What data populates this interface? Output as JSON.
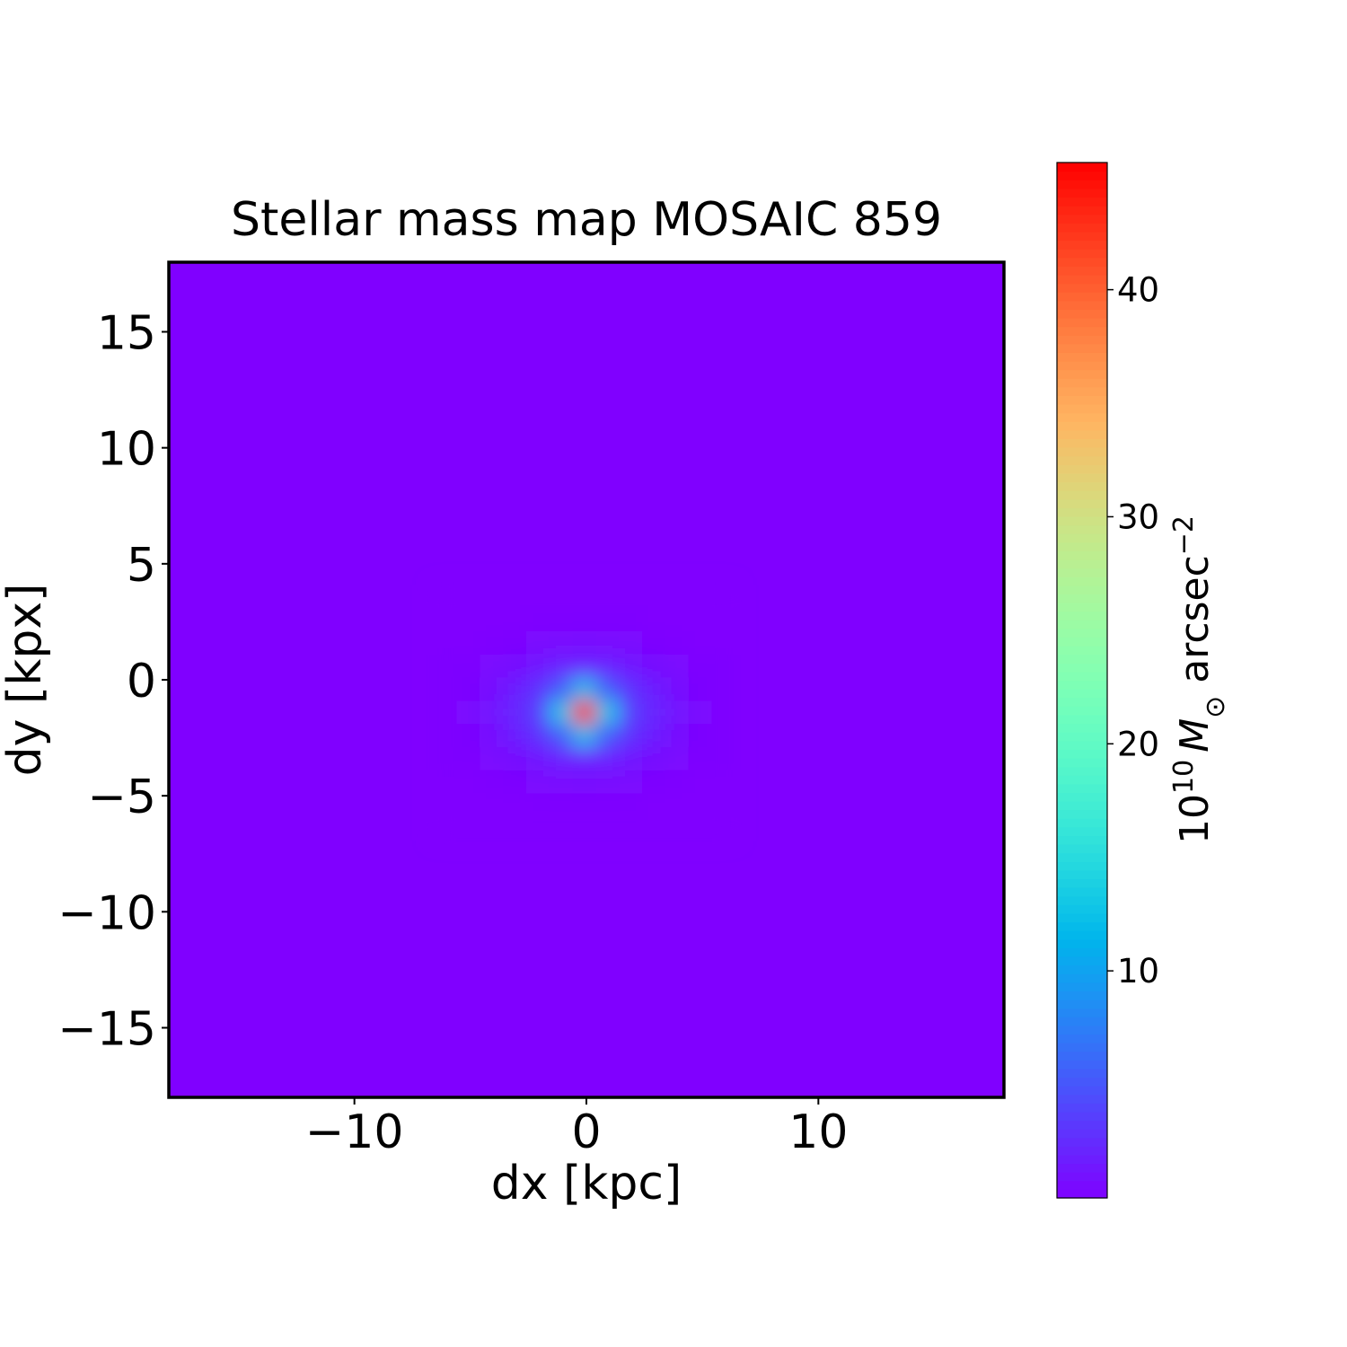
{
  "chart_data": {
    "type": "heatmap",
    "title": "Stellar mass map MOSAIC 859",
    "x_label": "dx [kpc]",
    "y_label": "dy [kpx]",
    "colorbar_label": [
      "10",
      "10",
      "M",
      "⊙",
      " arcsec",
      "−2"
    ],
    "colormap": "rainbow",
    "xlim": [
      -18,
      18
    ],
    "ylim": [
      -18,
      18
    ],
    "xticks": [
      {
        "value": -10,
        "label": "−10"
      },
      0,
      10
    ],
    "yticks": [
      {
        "value": -15,
        "label": "−15"
      },
      {
        "value": -10,
        "label": "−10"
      },
      {
        "value": -5,
        "label": "−5"
      },
      0,
      5,
      10,
      15
    ],
    "clim": [
      0,
      45.6
    ],
    "cticks": [
      10,
      20,
      30,
      40
    ],
    "x": [
      -6.1,
      -5.1,
      -4.1,
      -3.1,
      -2.1,
      -1.1,
      -0.1,
      0.9,
      1.9,
      2.9,
      3.9,
      4.9,
      5.9
    ],
    "y": [
      3.6,
      2.6,
      1.6,
      0.6,
      -0.4,
      -1.4,
      -2.4,
      -3.4,
      -4.4,
      -5.4,
      -6.4
    ],
    "z": [
      [
        0,
        0,
        0,
        0,
        0,
        0,
        0,
        0,
        0,
        0,
        0,
        0,
        0
      ],
      [
        0,
        0,
        0,
        0,
        0.1,
        0.1,
        0.1,
        0.1,
        0.1,
        0,
        0,
        0,
        0
      ],
      [
        0,
        0,
        0.1,
        0.2,
        0.4,
        0.5,
        0.6,
        0.5,
        0.4,
        0.2,
        0.1,
        0,
        0
      ],
      [
        0.1,
        0.2,
        0.4,
        0.8,
        1.3,
        1.8,
        2.0,
        1.8,
        1.3,
        0.8,
        0.4,
        0.2,
        0.1
      ],
      [
        0.1,
        0.3,
        0.8,
        1.7,
        2.9,
        5.4,
        12.0,
        5.4,
        2.9,
        1.7,
        0.8,
        0.3,
        0.1
      ],
      [
        0.1,
        0.4,
        1.1,
        2.2,
        3.7,
        12.8,
        45.6,
        12.8,
        3.7,
        2.2,
        1.1,
        0.4,
        0.1
      ],
      [
        0.1,
        0.3,
        0.8,
        1.7,
        2.9,
        5.4,
        12.0,
        5.4,
        2.9,
        1.7,
        0.8,
        0.3,
        0.1
      ],
      [
        0.1,
        0.2,
        0.4,
        0.8,
        1.3,
        1.8,
        2.0,
        1.8,
        1.3,
        0.8,
        0.4,
        0.2,
        0.1
      ],
      [
        0,
        0,
        0.1,
        0.2,
        0.4,
        0.5,
        0.6,
        0.5,
        0.4,
        0.2,
        0.1,
        0,
        0
      ],
      [
        0,
        0,
        0,
        0,
        0.1,
        0.1,
        0.1,
        0.1,
        0.1,
        0,
        0,
        0,
        0
      ],
      [
        0,
        0,
        0,
        0,
        0,
        0,
        0,
        0,
        0,
        0,
        0,
        0,
        0
      ]
    ]
  }
}
